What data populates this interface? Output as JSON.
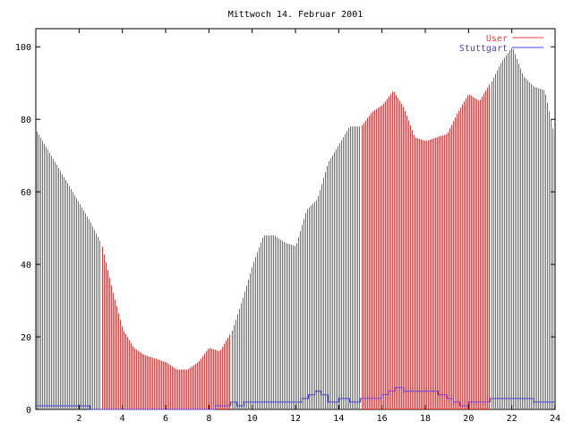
{
  "chart_data": {
    "type": "bar",
    "title": "Mittwoch 14. Februar 2001",
    "xlabel": "",
    "ylabel": "",
    "xlim": [
      0,
      24
    ],
    "ylim": [
      0,
      105
    ],
    "x_ticks": [
      "2",
      "4",
      "6",
      "8",
      "10",
      "12",
      "14",
      "16",
      "18",
      "20",
      "22",
      "24"
    ],
    "y_ticks": [
      "0",
      "20",
      "40",
      "60",
      "80",
      "100"
    ],
    "legend_position": "top-right",
    "colors": {
      "User": "#e04040",
      "Stuttgart": "#4040e0"
    },
    "series": [
      {
        "name": "User",
        "type": "bar",
        "color": "#e04040",
        "x": [
          0,
          0.5,
          1,
          1.5,
          2,
          2.5,
          3,
          3.5,
          4,
          4.5,
          5,
          5.5,
          6,
          6.5,
          7,
          7.5,
          8,
          8.5,
          9,
          9.5,
          10,
          10.5,
          11,
          11.5,
          12,
          12.5,
          13,
          13.5,
          14,
          14.5,
          15,
          15.5,
          16,
          16.5,
          17,
          17.5,
          18,
          18.5,
          19,
          19.5,
          20,
          20.5,
          21,
          21.5,
          22,
          22.5,
          23,
          23.5,
          24
        ],
        "values": [
          77,
          72,
          67,
          62,
          57,
          52,
          46,
          33,
          22,
          17,
          15,
          14,
          13,
          11,
          11,
          13,
          17,
          16,
          21,
          30,
          40,
          48,
          48,
          46,
          45,
          55,
          58,
          68,
          73,
          78,
          78,
          82,
          84,
          88,
          83,
          75,
          74,
          75,
          76,
          82,
          87,
          85,
          90,
          96,
          100,
          92,
          89,
          88,
          74
        ]
      },
      {
        "name": "Stuttgart",
        "type": "line",
        "color": "#4040e0",
        "x": [
          0,
          2.4,
          2.5,
          8.2,
          8.3,
          8.8,
          9.0,
          9.3,
          9.6,
          10,
          10.5,
          11,
          11.5,
          12,
          12.3,
          12.6,
          12.9,
          13.2,
          13.5,
          13.8,
          14,
          14.5,
          15,
          15.5,
          16,
          16.3,
          16.6,
          17,
          17.5,
          18,
          18.3,
          18.6,
          19,
          19.3,
          19.6,
          20,
          20.5,
          21,
          21.5,
          22,
          22.5,
          23,
          23.5,
          24
        ],
        "values": [
          1,
          1,
          0,
          0,
          1,
          1,
          2,
          1,
          2,
          2,
          2,
          2,
          2,
          2,
          3,
          4,
          5,
          4,
          2,
          2,
          3,
          2,
          3,
          3,
          4,
          5,
          6,
          5,
          5,
          5,
          5,
          4,
          3,
          2,
          1,
          2,
          2,
          3,
          3,
          3,
          3,
          2,
          2,
          2
        ]
      }
    ]
  }
}
